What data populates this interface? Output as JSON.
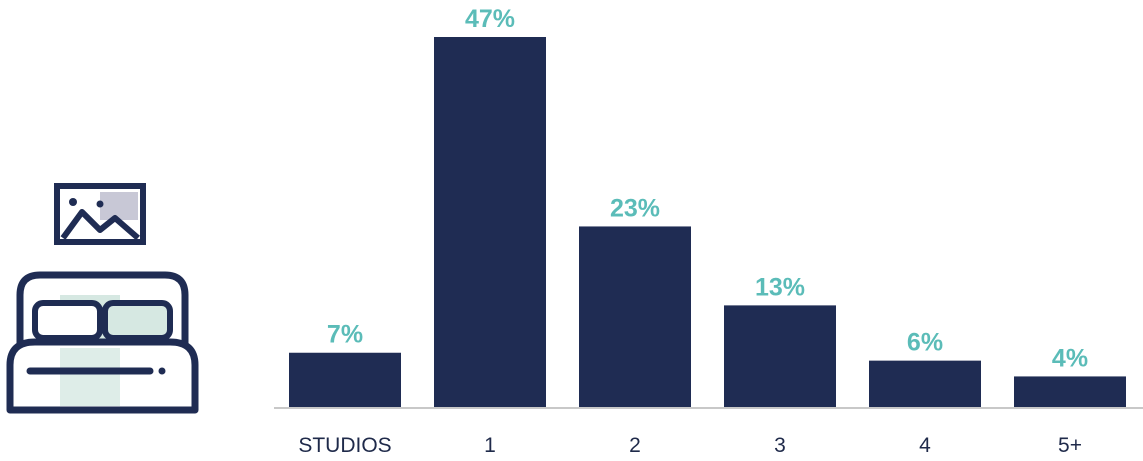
{
  "colors": {
    "bar": "#1f2c53",
    "label": "#5bbcb8",
    "axis": "#c8c8c8",
    "icon_stroke": "#1f2c53",
    "icon_fill": "#d6e8e2",
    "picture_fill": "#c8c8d6"
  },
  "icon": {
    "name": "bed-with-picture-icon"
  },
  "chart_data": {
    "type": "bar",
    "categories": [
      "STUDIOS",
      "1",
      "2",
      "3",
      "4",
      "5+"
    ],
    "values": [
      7,
      47,
      23,
      13,
      6,
      4
    ],
    "value_labels": [
      "7%",
      "47%",
      "23%",
      "13%",
      "6%",
      "4%"
    ],
    "title": "",
    "xlabel": "",
    "ylabel": "",
    "ylim": [
      0,
      47
    ],
    "grid": false,
    "legend": "none"
  }
}
